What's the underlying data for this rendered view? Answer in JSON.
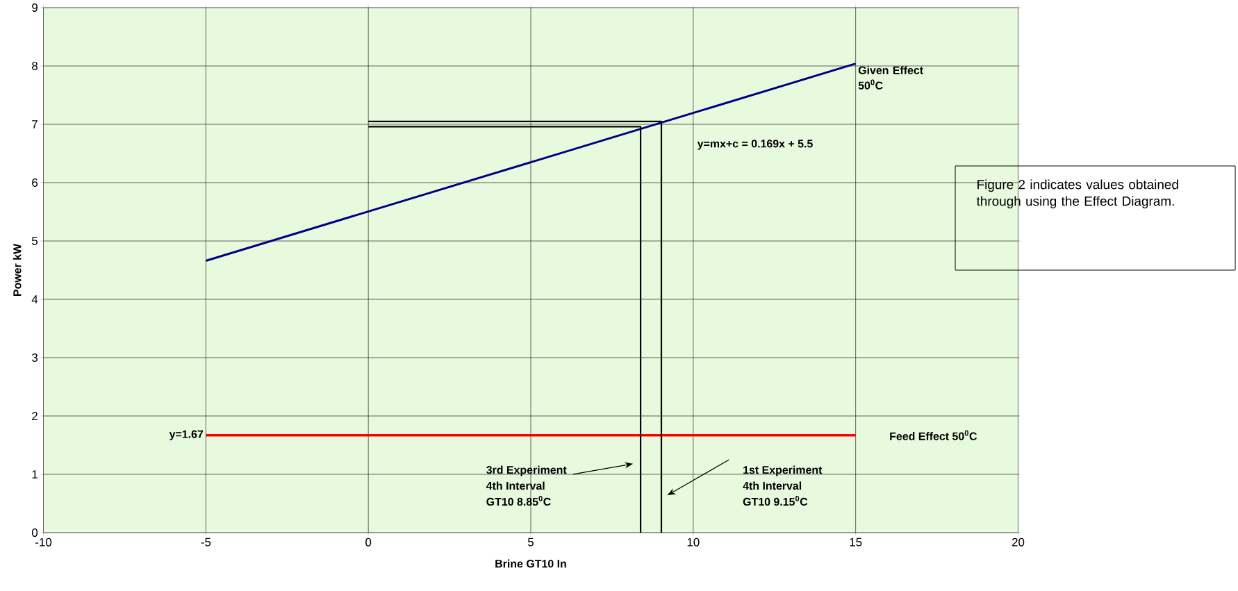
{
  "chart_data": {
    "type": "line",
    "xlabel": "Brine GT10 In",
    "ylabel": "Power kW",
    "series": [
      {
        "name": "Given Effect 50$^{0}$C",
        "color": "#000080",
        "x": [
          -5,
          15
        ],
        "values": [
          4.66,
          8.04
        ]
      },
      {
        "name": "Feed Effect 50$^{0}$C",
        "color": "#ff0000",
        "x": [
          -5,
          15
        ],
        "values": [
          1.67,
          1.67
        ]
      },
      {
        "color": "#000000",
        "x": [
          0,
          8.38,
          8.38
        ],
        "values": [
          6.96,
          6.96,
          0
        ]
      },
      {
        "color": "#000000",
        "x": [
          0,
          9.02,
          9.02
        ],
        "values": [
          7.05,
          7.05,
          0
        ]
      }
    ],
    "xlim": [
      -10,
      20
    ],
    "xticks": [
      -10,
      -5,
      0,
      5,
      10,
      15,
      20
    ],
    "ylim": [
      0,
      9
    ],
    "yticks": [
      0,
      1,
      2,
      3,
      4,
      5,
      6,
      7,
      8,
      9
    ],
    "grid": true,
    "legend": false,
    "marker": "none",
    "line_style": "solid",
    "annotations": [
      "y=mx+c = 0.169x + 5.5",
      {
        "text": "y=1.67",
        "x": -5,
        "y": 1.67
      },
      "3rd Experiment",
      "4th Interval",
      "GT10 8.85$^{0}$C",
      "1st Experiment",
      "4th Interval",
      "GT10 9.15$^{0}$C",
      "Figure 2 indicates values obtained through using the Effect Diagram."
    ]
  }
}
